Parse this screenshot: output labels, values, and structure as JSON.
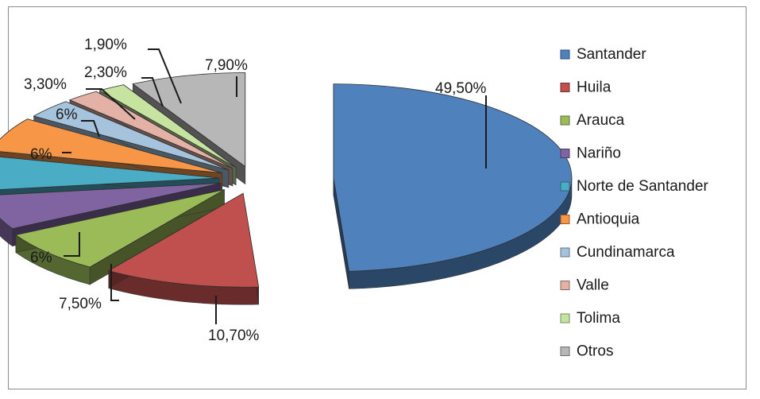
{
  "chart_data": {
    "type": "pie",
    "style": "3d-exploded",
    "legend_position": "right",
    "slices": [
      {
        "name": "Santander",
        "value": 49.5,
        "label": "49,50%",
        "color": "#4f81bd"
      },
      {
        "name": "Huila",
        "value": 10.7,
        "label": "10,70%",
        "color": "#c0504d"
      },
      {
        "name": "Arauca",
        "value": 7.5,
        "label": "7,50%",
        "color": "#9bbb59"
      },
      {
        "name": "Nariño",
        "value": 6,
        "label": "6%",
        "color": "#8064a2"
      },
      {
        "name": "Norte de Santander",
        "value": 6,
        "label": "6%",
        "color": "#4bacc6"
      },
      {
        "name": "Antioquia",
        "value": 6,
        "label": "6%",
        "color": "#f79646"
      },
      {
        "name": "Cundinamarca",
        "value": 3.3,
        "label": "3,30%",
        "color": "#a5c3dc"
      },
      {
        "name": "Valle",
        "value": 2.3,
        "label": "2,30%",
        "color": "#e3b1a6"
      },
      {
        "name": "Tolima",
        "value": 1.9,
        "label": "1,90%",
        "color": "#c6e4a0"
      },
      {
        "name": "Otros",
        "value": 7.9,
        "label": "7,90%",
        "color": "#b7b7b7"
      }
    ]
  }
}
